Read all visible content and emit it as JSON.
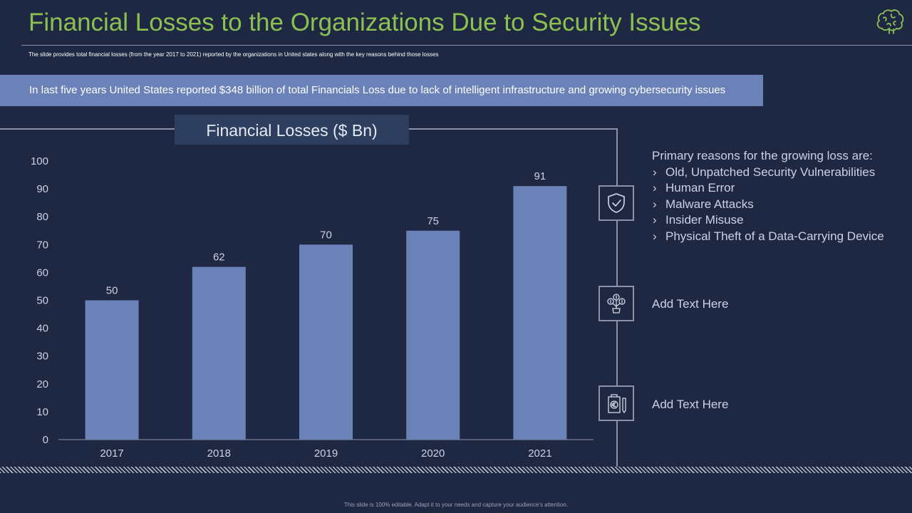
{
  "slide": {
    "title": "Financial Losses to the Organizations Due to Security Issues",
    "subtitle": "The slide provides total financial losses (from the year 2017  to 2021) reported by the organizations in United states along with the key reasons behind those losses",
    "banner": "In last five years United States reported $348 billion of total Financials Loss due to lack of intelligent infrastructure and growing cybersecurity issues",
    "footer": "This slide is 100% editable. Adapt it to your needs and capture your audience's attention.",
    "logo_icon": "brain-icon"
  },
  "chart_data": {
    "type": "bar",
    "title": "Financial Losses ($ Bn)",
    "categories": [
      "2017",
      "2018",
      "2019",
      "2020",
      "2021"
    ],
    "values": [
      50,
      62,
      70,
      75,
      91
    ],
    "data_labels": [
      "50",
      "62",
      "70",
      "75",
      "91"
    ],
    "yticks": [
      "0",
      "10",
      "20",
      "30",
      "40",
      "50",
      "60",
      "70",
      "80",
      "90",
      "100"
    ],
    "ylim": [
      0,
      100
    ],
    "xlabel": "",
    "ylabel": "",
    "bar_color": "#6b82b8",
    "grid": false
  },
  "side": {
    "reasons_heading": "Primary reasons for the growing loss are:",
    "reasons": [
      "Old, Unpatched Security Vulnerabilities",
      "Human Error",
      "Malware Attacks",
      "Insider Misuse",
      "Physical Theft of a Data-Carrying Device"
    ],
    "item2_text": "Add Text Here",
    "item3_text": "Add Text Here",
    "icons": [
      "shield-check-icon",
      "money-plant-icon",
      "euro-document-icon"
    ]
  },
  "colors": {
    "background": "#1f2842",
    "title": "#8cc152",
    "accent": "#6b82b8",
    "line": "#8b93a8"
  }
}
